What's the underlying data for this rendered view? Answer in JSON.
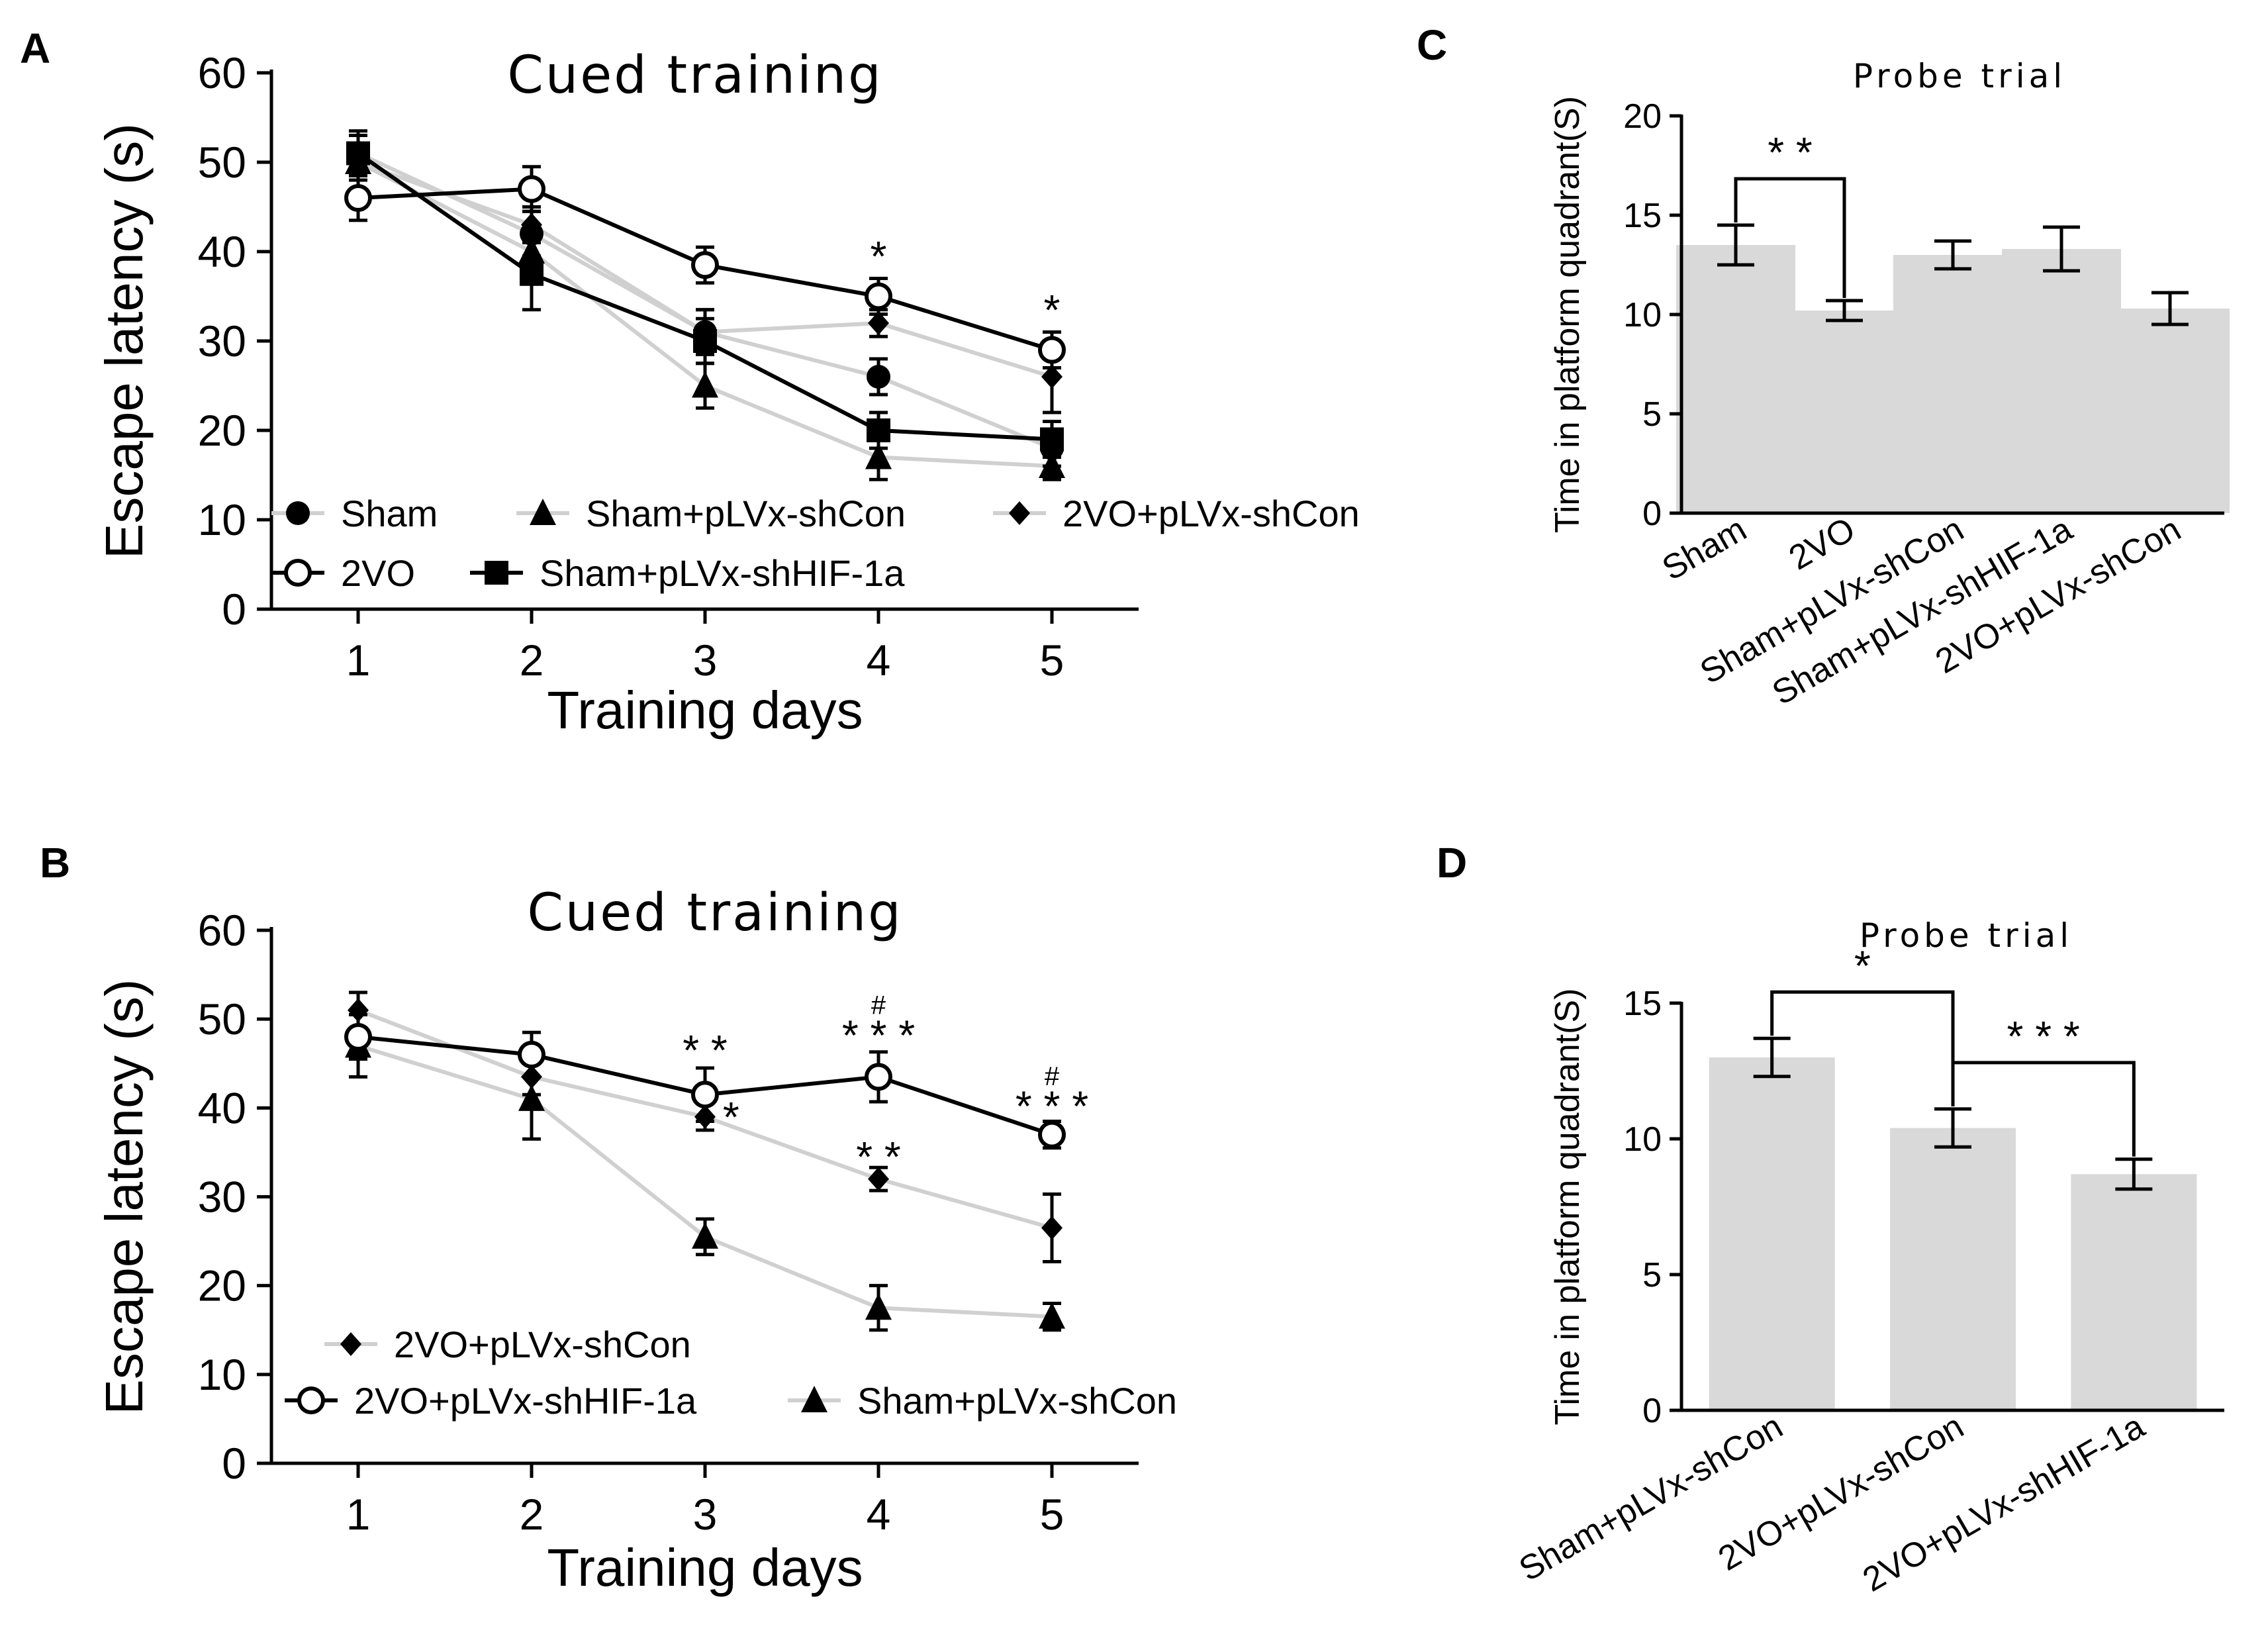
{
  "chart_data": [
    {
      "panel": "A",
      "type": "line",
      "title": "Cued training",
      "xlabel": "Training days",
      "ylabel": "Escape latency (s)",
      "x": [
        1,
        2,
        3,
        4,
        5
      ],
      "xlim": [
        0.5,
        5.5
      ],
      "ylim": [
        0,
        60
      ],
      "yticks": [
        0,
        10,
        20,
        30,
        40,
        50,
        60
      ],
      "series": [
        {
          "name": "Sham",
          "marker": "circle",
          "filled": true,
          "line": "gray",
          "values": [
            51,
            42,
            31,
            26,
            18
          ],
          "errors": [
            2,
            2.5,
            2.5,
            2,
            2
          ]
        },
        {
          "name": "Sham+pLVx-shCon",
          "marker": "triangle",
          "filled": true,
          "line": "gray",
          "values": [
            50,
            40,
            25,
            17,
            16
          ],
          "errors": [
            2,
            2.5,
            2.5,
            2.5,
            1.5
          ]
        },
        {
          "name": "2VO+pLVx-shCon",
          "marker": "diamond",
          "filled": true,
          "line": "gray",
          "values": [
            50,
            43,
            31,
            32,
            26
          ],
          "errors": [
            2,
            2,
            2.5,
            1.5,
            4
          ]
        },
        {
          "name": "2VO",
          "marker": "circle",
          "filled": false,
          "line": "black",
          "values": [
            46,
            47,
            38.5,
            35,
            29
          ],
          "errors": [
            2.5,
            2.5,
            2,
            2,
            2
          ]
        },
        {
          "name": "Sham+pLVx-shHIF-1a",
          "marker": "square",
          "filled": true,
          "line": "black",
          "values": [
            51,
            37.5,
            30,
            20,
            19
          ],
          "errors": [
            2.5,
            4,
            2.5,
            2,
            2
          ]
        }
      ],
      "annotations": [
        {
          "x": 4,
          "y": 39.5,
          "text": "*"
        },
        {
          "x": 5,
          "y": 33.5,
          "text": "*"
        }
      ]
    },
    {
      "panel": "B",
      "type": "line",
      "title": "Cued training",
      "xlabel": "Training days",
      "ylabel": "Escape latency (s)",
      "x": [
        1,
        2,
        3,
        4,
        5
      ],
      "xlim": [
        0.5,
        5.5
      ],
      "ylim": [
        0,
        60
      ],
      "yticks": [
        0,
        10,
        20,
        30,
        40,
        50,
        60
      ],
      "series": [
        {
          "name": "2VO+pLVx-shCon",
          "marker": "diamond",
          "filled": true,
          "line": "gray",
          "values": [
            51,
            43.5,
            39,
            32,
            26.5
          ],
          "errors": [
            2,
            2,
            1.5,
            1.3,
            3.8
          ]
        },
        {
          "name": "2VO+pLVx-shHIF-1a",
          "marker": "circle",
          "filled": false,
          "line": "black",
          "values": [
            48,
            46,
            41.5,
            43.5,
            37
          ],
          "errors": [
            2.5,
            2.5,
            3,
            2.8,
            1.5
          ]
        },
        {
          "name": "Sham+pLVx-shCon",
          "marker": "triangle",
          "filled": true,
          "line": "gray",
          "values": [
            47,
            41,
            25.5,
            17.5,
            16.5
          ],
          "errors": [
            3.5,
            4.5,
            2,
            2.5,
            1.5
          ]
        }
      ],
      "annotations": [
        {
          "x": 3,
          "y": 46.5,
          "text": "* *"
        },
        {
          "x": 3.15,
          "y": 39,
          "text": "*"
        },
        {
          "x": 4,
          "y": 48.2,
          "text": "* * *"
        },
        {
          "x": 4,
          "y": 52.2,
          "text": "#"
        },
        {
          "x": 4,
          "y": 34.5,
          "text": "* *"
        },
        {
          "x": 5,
          "y": 40.2,
          "text": "* * *"
        },
        {
          "x": 5,
          "y": 44.2,
          "text": "#"
        }
      ]
    },
    {
      "panel": "C",
      "type": "bar",
      "title": "Probe trial",
      "ylabel": "Time in platform quadrant(S)",
      "categories": [
        "Sham",
        "2VO",
        "Sham+pLVx-shCon",
        "Sham+pLVx-shHIF-1a",
        "2VO+pLVx-shCon"
      ],
      "values": [
        13.5,
        10.2,
        13.0,
        13.3,
        10.3
      ],
      "errors": [
        1.0,
        0.5,
        0.7,
        1.1,
        0.8
      ],
      "ylim": [
        0,
        20
      ],
      "yticks": [
        0,
        5,
        10,
        15,
        20
      ],
      "significance": [
        {
          "from": 0,
          "to": 1,
          "text": "* *"
        }
      ]
    },
    {
      "panel": "D",
      "type": "bar",
      "title": "Probe trial",
      "ylabel": "Time in platform quadrant(S)",
      "categories": [
        "Sham+pLVx-shCon",
        "2VO+pLVx-shCon",
        "2VO+pLVx-shHIF-1a"
      ],
      "values": [
        13.0,
        10.4,
        8.7
      ],
      "errors": [
        0.7,
        0.7,
        0.55
      ],
      "ylim": [
        0,
        15
      ],
      "yticks": [
        0,
        5,
        10,
        15
      ],
      "significance": [
        {
          "from": 0,
          "to": 1,
          "text": "*"
        },
        {
          "from": 1,
          "to": 2,
          "text": "* * *"
        }
      ]
    }
  ]
}
